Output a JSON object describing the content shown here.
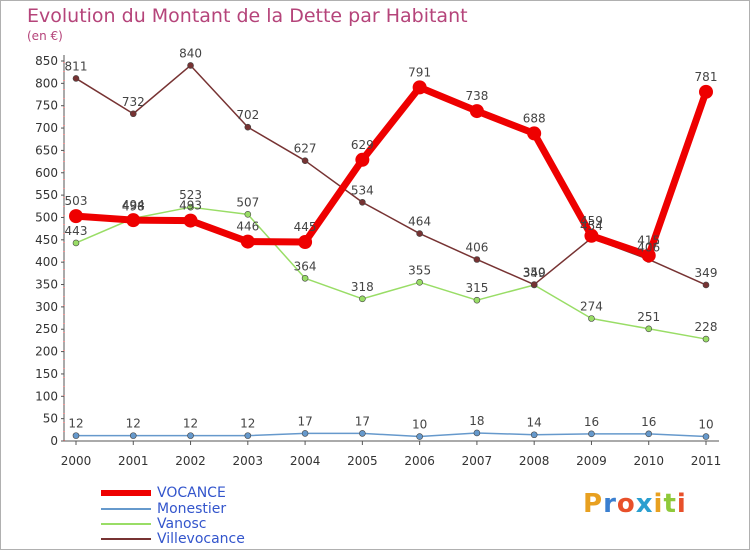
{
  "header": {
    "title": "Evolution du Montant de la Dette par Habitant",
    "unit": "(en €)"
  },
  "logo": {
    "text": "Proxiti",
    "colors": [
      "#e8a020",
      "#3a7fd0",
      "#e8502a",
      "#2a9fd0",
      "#e8a020",
      "#8fc93a",
      "#e8502a"
    ]
  },
  "chart_data": {
    "type": "line",
    "title": "Evolution du Montant de la Dette par Habitant",
    "subtitle": "(en €)",
    "xlabel": "",
    "ylabel": "",
    "categories": [
      "2000",
      "2001",
      "2002",
      "2003",
      "2004",
      "2005",
      "2006",
      "2007",
      "2008",
      "2009",
      "2010",
      "2011"
    ],
    "yticks": [
      0,
      50,
      100,
      150,
      200,
      250,
      300,
      350,
      400,
      450,
      500,
      550,
      600,
      650,
      700,
      750,
      800,
      850
    ],
    "ylim": [
      0,
      850
    ],
    "grid": false,
    "legend_position": "bottom-left",
    "series": [
      {
        "name": "VOCANCE",
        "color": "#ee0000",
        "values": [
          503,
          494,
          493,
          446,
          445,
          629,
          791,
          738,
          688,
          459,
          415,
          781
        ]
      },
      {
        "name": "Monestier",
        "color": "#6699cc",
        "values": [
          12,
          12,
          12,
          12,
          17,
          17,
          10,
          18,
          14,
          16,
          16,
          10
        ]
      },
      {
        "name": "Vanosc",
        "color": "#99dd66",
        "values": [
          443,
          498,
          523,
          507,
          364,
          318,
          355,
          315,
          349,
          274,
          251,
          228
        ]
      },
      {
        "name": "Villevocance",
        "color": "#773333",
        "values": [
          811,
          732,
          840,
          702,
          627,
          534,
          464,
          406,
          350,
          454,
          406,
          349
        ]
      }
    ]
  }
}
